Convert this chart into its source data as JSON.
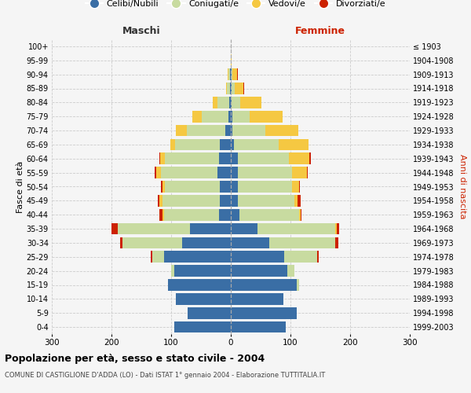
{
  "age_groups": [
    "0-4",
    "5-9",
    "10-14",
    "15-19",
    "20-24",
    "25-29",
    "30-34",
    "35-39",
    "40-44",
    "45-49",
    "50-54",
    "55-59",
    "60-64",
    "65-69",
    "70-74",
    "75-79",
    "80-84",
    "85-89",
    "90-94",
    "95-99",
    "100+"
  ],
  "birth_years": [
    "1999-2003",
    "1994-1998",
    "1989-1993",
    "1984-1988",
    "1979-1983",
    "1974-1978",
    "1969-1973",
    "1964-1968",
    "1959-1963",
    "1954-1958",
    "1949-1953",
    "1944-1948",
    "1939-1943",
    "1934-1938",
    "1929-1933",
    "1924-1928",
    "1919-1923",
    "1914-1918",
    "1909-1913",
    "1904-1908",
    "≤ 1903"
  ],
  "male": {
    "celibi": [
      95,
      72,
      92,
      105,
      95,
      112,
      82,
      68,
      20,
      18,
      18,
      22,
      20,
      18,
      9,
      4,
      2,
      1,
      1,
      0,
      0
    ],
    "coniugati": [
      0,
      0,
      0,
      0,
      5,
      20,
      100,
      122,
      92,
      97,
      92,
      95,
      90,
      75,
      65,
      45,
      20,
      5,
      3,
      0,
      0
    ],
    "vedovi": [
      0,
      0,
      0,
      0,
      0,
      0,
      0,
      0,
      3,
      5,
      5,
      8,
      8,
      8,
      18,
      15,
      8,
      2,
      1,
      0,
      0
    ],
    "divorziati": [
      0,
      0,
      0,
      0,
      0,
      2,
      4,
      10,
      5,
      2,
      2,
      3,
      2,
      0,
      0,
      0,
      0,
      0,
      0,
      0,
      0
    ]
  },
  "female": {
    "nubili": [
      92,
      110,
      88,
      110,
      95,
      90,
      65,
      45,
      15,
      12,
      12,
      12,
      12,
      5,
      3,
      2,
      1,
      1,
      1,
      0,
      0
    ],
    "coniugate": [
      0,
      0,
      0,
      5,
      12,
      55,
      110,
      130,
      100,
      95,
      90,
      90,
      85,
      75,
      55,
      30,
      15,
      5,
      2,
      0,
      0
    ],
    "vedove": [
      0,
      0,
      0,
      0,
      0,
      0,
      0,
      2,
      2,
      5,
      12,
      25,
      35,
      50,
      55,
      55,
      35,
      15,
      8,
      1,
      0
    ],
    "divorziate": [
      0,
      0,
      0,
      0,
      0,
      2,
      5,
      5,
      2,
      5,
      2,
      2,
      2,
      0,
      0,
      0,
      0,
      1,
      1,
      0,
      0
    ]
  },
  "colors": {
    "celibi_nubili": "#3a6ea5",
    "coniugati": "#c8dba0",
    "vedovi": "#f5c842",
    "divorziati": "#cc2200"
  },
  "title": "Popolazione per età, sesso e stato civile - 2004",
  "subtitle": "COMUNE DI CASTIGLIONE D'ADDA (LO) - Dati ISTAT 1° gennaio 2004 - Elaborazione TUTTITALIA.IT",
  "xlabel_left": "Maschi",
  "xlabel_right": "Femmine",
  "ylabel_left": "Fasce di età",
  "ylabel_right": "Anni di nascita",
  "xlim": 300,
  "bg_color": "#f5f5f5",
  "grid_color": "#cccccc",
  "legend_labels": [
    "Celibi/Nubili",
    "Coniugati/e",
    "Vedovi/e",
    "Divorziati/e"
  ]
}
